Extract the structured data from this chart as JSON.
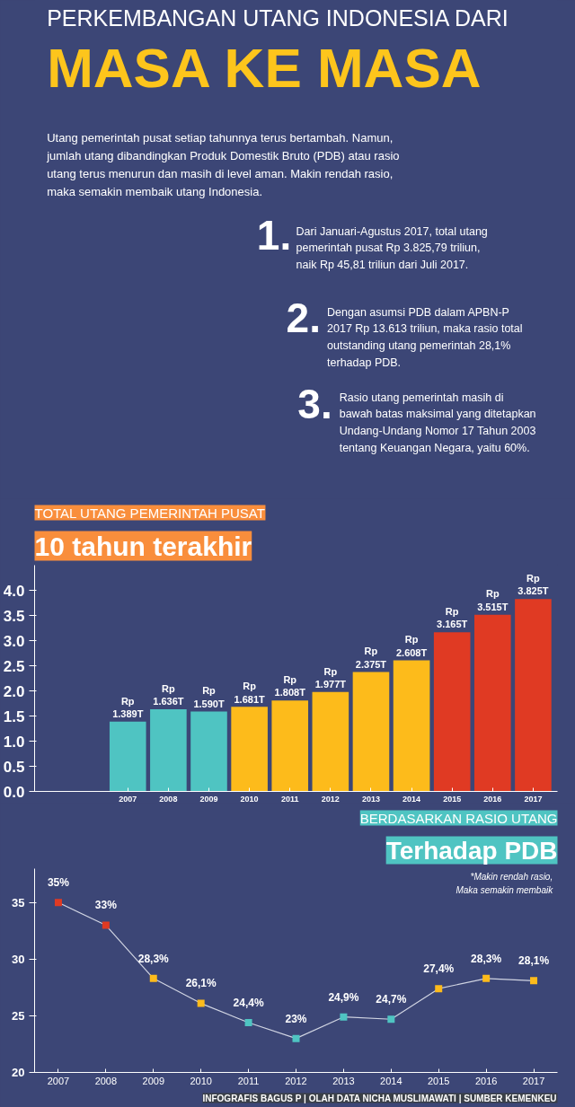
{
  "chart_data": [
    {
      "type": "other",
      "title": "PERKEMBANGAN UTANG INDONESIA DARI",
      "subtitle": "MASA KE MASA",
      "annotations": [
        "Utang pemerintah pusat setiap tahunnya terus bertambah. Namun,\njumlah utang dibandingkan Produk Domestik Bruto (PDB) atau rasio\nutang terus menurun dan masih di level aman. Makin rendah rasio,\nmaka semakin membaik utang Indonesia.",
        "1.",
        "Dari Januari-Agustus 2017, total utang\npemerintah pusat Rp 3.825,79 triliun,\nnaik Rp 45,81 triliun dari Juli 2017.",
        "2.",
        "Dengan asumsi PDB dalam APBN-P\n2017 Rp 13.613 triliun, maka rasio total\noutstanding utang pemerintah 28,1%\nterhadap PDB.",
        "3.",
        "Rasio utang pemerintah masih di\nbawah batas maksimal yang ditetapkan\nUndang-Undang Nomor 17 Tahun 2003\ntentang Keuangan Negara, yaitu 60%."
      ]
    },
    {
      "type": "bar",
      "title": "TOTAL UTANG PEMERINTAH PUSAT",
      "subtitle": "10 tahun terakhir",
      "categories": [
        "2007",
        "2008",
        "2009",
        "2010",
        "2011",
        "2012",
        "2013",
        "2014",
        "2015",
        "2016",
        "2017"
      ],
      "values": [
        1.389,
        1.636,
        1.59,
        1.681,
        1.808,
        1.977,
        2.375,
        2.608,
        3.165,
        3.515,
        3.825
      ],
      "colors": [
        "#4fc4c2",
        "#4fc4c2",
        "#4fc4c2",
        "#fdbb1b",
        "#fdbb1b",
        "#fdbb1b",
        "#fdbb1b",
        "#fdbb1b",
        "#e03a23",
        "#e03a23",
        "#e03a23"
      ],
      "value_labels": [
        "Rp\n1.389T",
        "Rp\n1.636T",
        "Rp\n1.590T",
        "Rp\n1.681T",
        "Rp\n1.808T",
        "Rp\n1.977T",
        "Rp\n2.375T",
        "Rp\n2.608T",
        "Rp\n3.165T",
        "Rp\n3.515T",
        "Rp\n3.825T"
      ],
      "ylim": [
        0,
        4.5
      ],
      "yticks": [
        {
          "value": 0,
          "label": "0.0"
        },
        0.5,
        {
          "value": 1,
          "label": "1.0"
        },
        1.5,
        {
          "value": 2,
          "label": "2.0"
        },
        2.5,
        {
          "value": 3,
          "label": "3.0"
        },
        3.5,
        {
          "value": 4,
          "label": "4.0"
        }
      ]
    },
    {
      "type": "line",
      "title": "BERDASARKAN RASIO UTANG",
      "subtitle": "Terhadap PDB",
      "categories": [
        "2007",
        "2008",
        "2009",
        "2010",
        "2011",
        "2012",
        "2013",
        "2014",
        "2015",
        "2016",
        "2017"
      ],
      "values": [
        35,
        33,
        28.3,
        26.1,
        24.4,
        23,
        24.9,
        24.7,
        27.4,
        28.3,
        28.1
      ],
      "color": "#d0d4e2",
      "colors": [
        "#e03a23",
        "#e03a23",
        "#fdbb1b",
        "#fdbb1b",
        "#4fc4c2",
        "#4fc4c2",
        "#4fc4c2",
        "#4fc4c2",
        "#fdbb1b",
        "#fdbb1b",
        "#fdbb1b"
      ],
      "marker": "square",
      "value_labels": [
        "35%",
        "33%",
        "28,3%",
        "26,1%",
        "24,4%",
        "23%",
        "24,9%",
        "24,7%",
        "27,4%",
        "28,3%",
        "28,1%"
      ],
      "ylim": [
        20,
        38
      ],
      "yticks": [
        20,
        25,
        30,
        35
      ],
      "annotations": [
        "*Makin rendah rasio,\nMaka semakin membaik",
        "INFOGRAFIS BAGUS P | OLAH DATA NICHA MUSLIMAWATI | SUMBER KEMENKEU"
      ]
    }
  ]
}
